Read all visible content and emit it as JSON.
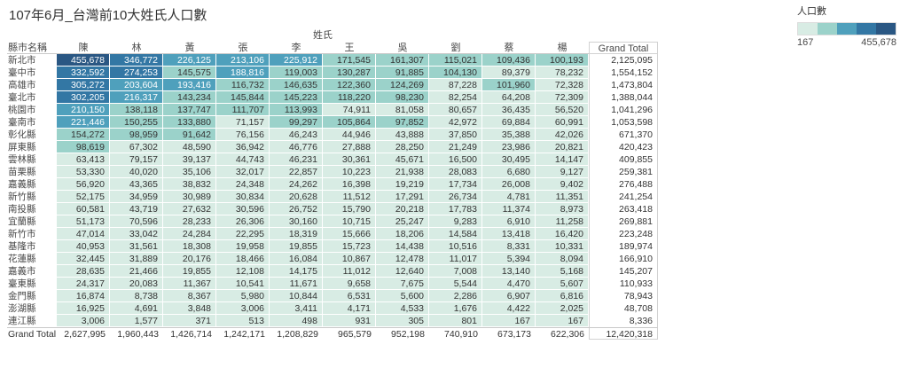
{
  "title": "107年6月_台灣前10大姓氏人口數",
  "legend": {
    "title": "人口數",
    "min_label": "167",
    "max_label": "455,678",
    "colors": [
      "#d8ece4",
      "#9bd2ca",
      "#4fa0bc",
      "#3377a4",
      "#2a5783"
    ],
    "text_dark": "#333333",
    "text_light": "#ffffff"
  },
  "chart_data": {
    "type": "heatmap",
    "title": "107年6月_台灣前10大姓氏人口數",
    "row_header": "縣市名稱",
    "column_group_header": "姓氏",
    "columns": [
      "陳",
      "林",
      "黃",
      "張",
      "李",
      "王",
      "吳",
      "劉",
      "蔡",
      "楊"
    ],
    "grand_total_label": "Grand Total",
    "color_scale": {
      "label": "人口數",
      "min": 167,
      "max": 455678,
      "steps": 5
    },
    "rows": [
      {
        "name": "新北市",
        "values": [
          455678,
          346772,
          226125,
          213106,
          225912,
          171545,
          161307,
          115021,
          109436,
          100193
        ],
        "total": 2125095
      },
      {
        "name": "臺中市",
        "values": [
          332592,
          274253,
          145575,
          188816,
          119003,
          130287,
          91885,
          104130,
          89379,
          78232
        ],
        "total": 1554152
      },
      {
        "name": "高雄市",
        "values": [
          305272,
          203604,
          193416,
          116732,
          146635,
          122360,
          124269,
          87228,
          101960,
          72328
        ],
        "total": 1473804
      },
      {
        "name": "臺北市",
        "values": [
          302205,
          216317,
          143234,
          145844,
          145223,
          118220,
          98230,
          82254,
          64208,
          72309
        ],
        "total": 1388044
      },
      {
        "name": "桃園市",
        "values": [
          210150,
          138118,
          137747,
          111707,
          113993,
          74911,
          81058,
          80657,
          36435,
          56520
        ],
        "total": 1041296
      },
      {
        "name": "臺南市",
        "values": [
          221446,
          150255,
          133880,
          71157,
          99297,
          105864,
          97852,
          42972,
          69884,
          60991
        ],
        "total": 1053598
      },
      {
        "name": "彰化縣",
        "values": [
          154272,
          98959,
          91642,
          76156,
          46243,
          44946,
          43888,
          37850,
          35388,
          42026
        ],
        "total": 671370
      },
      {
        "name": "屏東縣",
        "values": [
          98619,
          67302,
          48590,
          36942,
          46776,
          27888,
          28250,
          21249,
          23986,
          20821
        ],
        "total": 420423
      },
      {
        "name": "雲林縣",
        "values": [
          63413,
          79157,
          39137,
          44743,
          46231,
          30361,
          45671,
          16500,
          30495,
          14147
        ],
        "total": 409855
      },
      {
        "name": "苗栗縣",
        "values": [
          53330,
          40020,
          35106,
          32017,
          22857,
          10223,
          21938,
          28083,
          6680,
          9127
        ],
        "total": 259381
      },
      {
        "name": "嘉義縣",
        "values": [
          56920,
          43365,
          38832,
          24348,
          24262,
          16398,
          19219,
          17734,
          26008,
          9402
        ],
        "total": 276488
      },
      {
        "name": "新竹縣",
        "values": [
          52175,
          34959,
          30989,
          30834,
          20628,
          11512,
          17291,
          26734,
          4781,
          11351
        ],
        "total": 241254
      },
      {
        "name": "南投縣",
        "values": [
          60581,
          43719,
          27632,
          30596,
          26752,
          15790,
          20218,
          17783,
          11374,
          8973
        ],
        "total": 263418
      },
      {
        "name": "宜蘭縣",
        "values": [
          51173,
          70596,
          28233,
          26306,
          30160,
          10715,
          25247,
          9283,
          6910,
          11258
        ],
        "total": 269881
      },
      {
        "name": "新竹市",
        "values": [
          47014,
          33042,
          24284,
          22295,
          18319,
          15666,
          18206,
          14584,
          13418,
          16420
        ],
        "total": 223248
      },
      {
        "name": "基隆市",
        "values": [
          40953,
          31561,
          18308,
          19958,
          19855,
          15723,
          14438,
          10516,
          8331,
          10331
        ],
        "total": 189974
      },
      {
        "name": "花蓮縣",
        "values": [
          32445,
          31889,
          20176,
          18466,
          16084,
          10867,
          12478,
          11017,
          5394,
          8094
        ],
        "total": 166910
      },
      {
        "name": "嘉義市",
        "values": [
          28635,
          21466,
          19855,
          12108,
          14175,
          11012,
          12640,
          7008,
          13140,
          5168
        ],
        "total": 145207
      },
      {
        "name": "臺東縣",
        "values": [
          24317,
          20083,
          11367,
          10541,
          11671,
          9658,
          7675,
          5544,
          4470,
          5607
        ],
        "total": 110933
      },
      {
        "name": "金門縣",
        "values": [
          16874,
          8738,
          8367,
          5980,
          10844,
          6531,
          5600,
          2286,
          6907,
          6816
        ],
        "total": 78943
      },
      {
        "name": "澎湖縣",
        "values": [
          16925,
          4691,
          3848,
          3006,
          3411,
          4171,
          4533,
          1676,
          4422,
          2025
        ],
        "total": 48708
      },
      {
        "name": "連江縣",
        "values": [
          3006,
          1577,
          371,
          513,
          498,
          931,
          305,
          801,
          167,
          167
        ],
        "total": 8336
      }
    ],
    "column_totals": [
      2627995,
      1960443,
      1426714,
      1242171,
      1208829,
      965579,
      952198,
      740910,
      673173,
      622306
    ],
    "grand_total": 12420318
  }
}
